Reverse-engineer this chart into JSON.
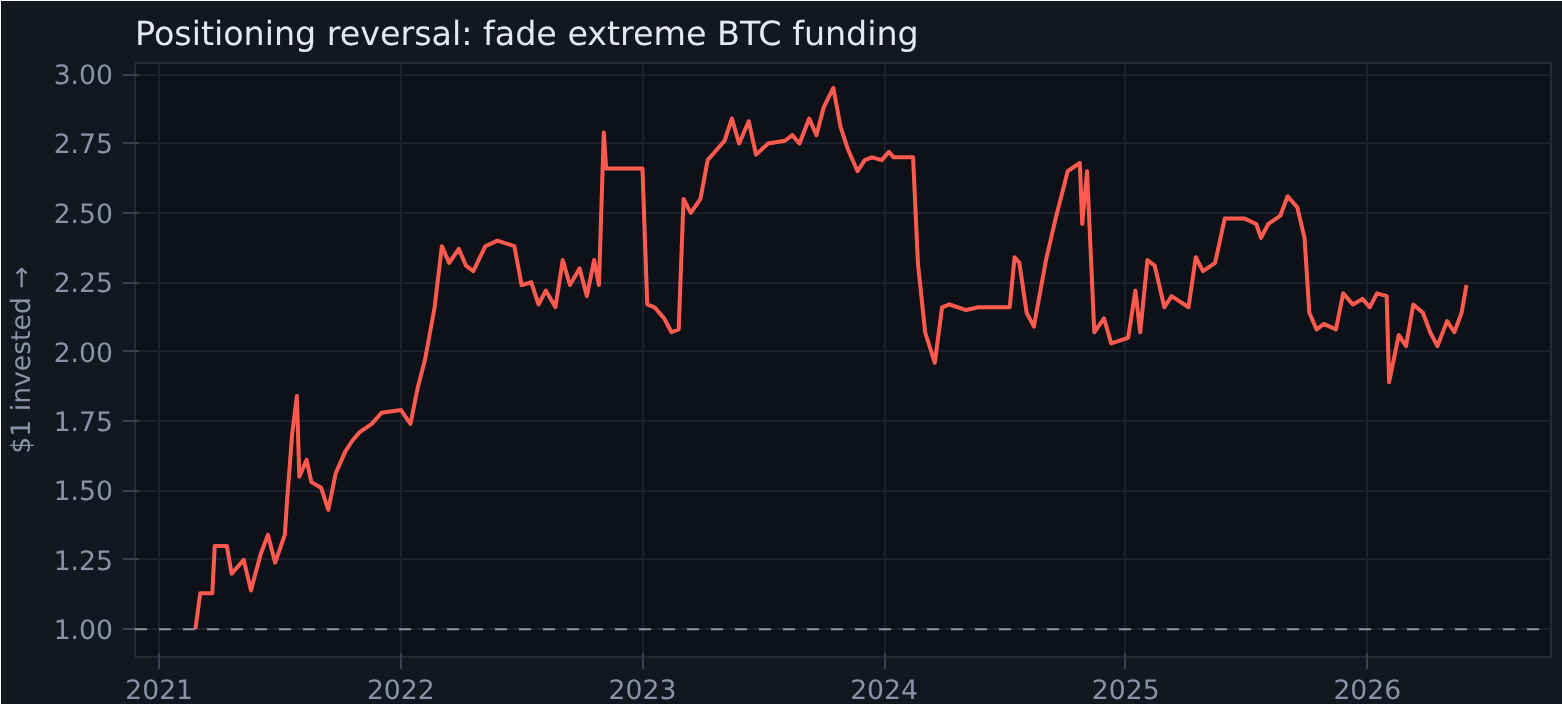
{
  "chart_data": {
    "type": "line",
    "title": "Positioning reversal: fade extreme BTC funding",
    "ylabel": "$1 invested →",
    "x": [
      2021.15,
      2021.17,
      2021.22,
      2021.23,
      2021.28,
      2021.3,
      2021.35,
      2021.38,
      2021.42,
      2021.45,
      2021.48,
      2021.52,
      2021.53,
      2021.55,
      2021.57,
      2021.58,
      2021.61,
      2021.63,
      2021.67,
      2021.7,
      2021.73,
      2021.77,
      2021.8,
      2021.83,
      2021.88,
      2021.92,
      2022.0,
      2022.04,
      2022.07,
      2022.1,
      2022.14,
      2022.17,
      2022.2,
      2022.24,
      2022.27,
      2022.3,
      2022.35,
      2022.4,
      2022.47,
      2022.5,
      2022.54,
      2022.57,
      2022.6,
      2022.64,
      2022.67,
      2022.7,
      2022.74,
      2022.77,
      2022.8,
      2022.82,
      2022.84,
      2022.85,
      2023.0,
      2023.02,
      2023.05,
      2023.09,
      2023.12,
      2023.15,
      2023.17,
      2023.2,
      2023.24,
      2023.27,
      2023.34,
      2023.37,
      2023.4,
      2023.44,
      2023.47,
      2023.52,
      2023.59,
      2023.62,
      2023.65,
      2023.69,
      2023.72,
      2023.75,
      2023.79,
      2023.82,
      2023.85,
      2023.89,
      2023.92,
      2023.95,
      2023.99,
      2024.0,
      2024.02,
      2024.04,
      2024.12,
      2024.14,
      2024.17,
      2024.21,
      2024.24,
      2024.27,
      2024.34,
      2024.39,
      2024.49,
      2024.52,
      2024.54,
      2024.56,
      2024.59,
      2024.62,
      2024.67,
      2024.71,
      2024.76,
      2024.81,
      2024.82,
      2024.84,
      2024.87,
      2024.91,
      2024.94,
      2025.01,
      2025.04,
      2025.06,
      2025.09,
      2025.12,
      2025.16,
      2025.19,
      2025.26,
      2025.29,
      2025.32,
      2025.37,
      2025.41,
      2025.49,
      2025.54,
      2025.56,
      2025.59,
      2025.64,
      2025.67,
      2025.71,
      2025.74,
      2025.76,
      2025.79,
      2025.82,
      2025.87,
      2025.9,
      2025.94,
      2025.98,
      2026.01,
      2026.04,
      2026.08,
      2026.09,
      2026.13,
      2026.16,
      2026.19,
      2026.23,
      2026.26,
      2026.29,
      2026.33,
      2026.36,
      2026.39,
      2026.41
    ],
    "series": [
      {
        "color": "#ff5a4f",
        "values": [
          1.0,
          1.13,
          1.13,
          1.3,
          1.3,
          1.2,
          1.25,
          1.14,
          1.27,
          1.34,
          1.24,
          1.34,
          1.47,
          1.7,
          1.84,
          1.55,
          1.61,
          1.53,
          1.51,
          1.43,
          1.56,
          1.64,
          1.68,
          1.71,
          1.74,
          1.78,
          1.79,
          1.74,
          1.87,
          1.97,
          2.16,
          2.38,
          2.32,
          2.37,
          2.31,
          2.29,
          2.38,
          2.4,
          2.38,
          2.24,
          2.25,
          2.17,
          2.22,
          2.16,
          2.33,
          2.24,
          2.3,
          2.2,
          2.33,
          2.24,
          2.79,
          2.66,
          2.66,
          2.17,
          2.16,
          2.12,
          2.07,
          2.08,
          2.55,
          2.5,
          2.55,
          2.69,
          2.76,
          2.84,
          2.75,
          2.83,
          2.71,
          2.75,
          2.76,
          2.78,
          2.75,
          2.84,
          2.78,
          2.88,
          2.95,
          2.81,
          2.73,
          2.65,
          2.69,
          2.7,
          2.69,
          2.7,
          2.72,
          2.7,
          2.7,
          2.32,
          2.07,
          1.96,
          2.16,
          2.17,
          2.15,
          2.16,
          2.16,
          2.16,
          2.34,
          2.32,
          2.14,
          2.09,
          2.33,
          2.48,
          2.65,
          2.68,
          2.46,
          2.65,
          2.07,
          2.12,
          2.03,
          2.05,
          2.22,
          2.07,
          2.33,
          2.31,
          2.16,
          2.2,
          2.16,
          2.34,
          2.29,
          2.32,
          2.48,
          2.48,
          2.46,
          2.41,
          2.46,
          2.49,
          2.56,
          2.52,
          2.41,
          2.14,
          2.08,
          2.1,
          2.08,
          2.21,
          2.17,
          2.19,
          2.16,
          2.21,
          2.2,
          1.89,
          2.06,
          2.02,
          2.17,
          2.14,
          2.07,
          2.02,
          2.11,
          2.07,
          2.14,
          2.24
        ]
      }
    ],
    "xlim": [
      2020.9,
      2026.76
    ],
    "ylim": [
      0.9,
      3.04
    ],
    "xticks": [
      2021,
      2022,
      2023,
      2024,
      2025,
      2026
    ],
    "yticks": [
      {
        "value": 1,
        "label": "1.00"
      },
      {
        "value": 1.25,
        "label": "1.25"
      },
      {
        "value": 1.5,
        "label": "1.50"
      },
      {
        "value": 1.75,
        "label": "1.75"
      },
      {
        "value": 2,
        "label": "2.00"
      },
      {
        "value": 2.25,
        "label": "2.25"
      },
      {
        "value": 2.5,
        "label": "2.50"
      },
      {
        "value": 2.75,
        "label": "2.75"
      },
      {
        "value": 3,
        "label": "3.00"
      }
    ],
    "ref_lines": [
      {
        "axis": "y",
        "value": 1,
        "color": "#8a93a6",
        "line_style": "dashed"
      }
    ],
    "grid": true,
    "line_style": "solid",
    "marker": "none"
  }
}
